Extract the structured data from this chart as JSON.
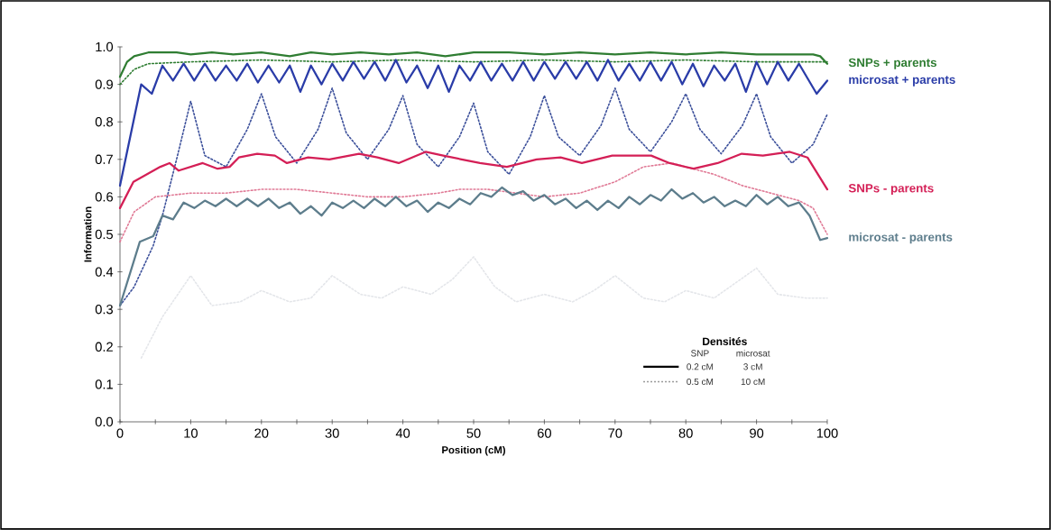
{
  "chart_data": {
    "type": "line",
    "xlabel": "Position (cM)",
    "ylabel": "Information",
    "legend_title": "Densités",
    "annotations": [
      "SNP",
      "microsat",
      "0.2 cM",
      "3 cM",
      "0.5 cM",
      "10 cM"
    ],
    "xlim": [
      0,
      100
    ],
    "ylim": [
      0,
      1.0
    ],
    "xticks": [
      0,
      {
        "value": 5,
        "label": null
      },
      10,
      {
        "value": 15,
        "label": null
      },
      20,
      {
        "value": 25,
        "label": null
      },
      30,
      {
        "value": 35,
        "label": null
      },
      40,
      {
        "value": 45,
        "label": null
      },
      50,
      {
        "value": 55,
        "label": null
      },
      60,
      {
        "value": 65,
        "label": null
      },
      70,
      {
        "value": 75,
        "label": null
      },
      80,
      {
        "value": 85,
        "label": null
      },
      90,
      {
        "value": 95,
        "label": null
      },
      100
    ],
    "yticks": [
      {
        "value": 0,
        "label": "0.0"
      },
      {
        "value": 0.1,
        "label": "0.1"
      },
      {
        "value": 0.2,
        "label": "0.2"
      },
      {
        "value": 0.3,
        "label": "0.3"
      },
      {
        "value": 0.4,
        "label": "0.4"
      },
      {
        "value": 0.5,
        "label": "0.5"
      },
      {
        "value": 0.6,
        "label": "0.6"
      },
      {
        "value": 0.7,
        "label": "0.7"
      },
      {
        "value": 0.8,
        "label": "0.8"
      },
      {
        "value": 0.9,
        "label": "0.9"
      },
      {
        "value": 1.0,
        "label": "1.0"
      }
    ],
    "marker": "none",
    "series": [
      {
        "color": "#e4e6ea",
        "line_style": "dotted",
        "x": [
          3,
          6,
          10,
          13,
          17,
          20,
          24,
          27,
          30,
          34,
          37,
          40,
          44,
          47,
          50,
          53,
          56,
          60,
          64,
          67,
          70,
          74,
          77,
          80,
          84,
          87,
          90,
          93,
          97,
          100
        ],
        "values": [
          0.17,
          0.28,
          0.39,
          0.31,
          0.32,
          0.35,
          0.32,
          0.33,
          0.39,
          0.34,
          0.33,
          0.36,
          0.34,
          0.38,
          0.44,
          0.36,
          0.32,
          0.34,
          0.32,
          0.35,
          0.39,
          0.33,
          0.32,
          0.35,
          0.33,
          0.37,
          0.41,
          0.34,
          0.33,
          0.33
        ]
      },
      {
        "color": "#2f7d32",
        "line_style": "dotted",
        "x": [
          0,
          2,
          4,
          10,
          20,
          30,
          40,
          50,
          60,
          70,
          80,
          90,
          96,
          100
        ],
        "values": [
          0.9,
          0.94,
          0.955,
          0.96,
          0.965,
          0.96,
          0.965,
          0.96,
          0.965,
          0.96,
          0.965,
          0.96,
          0.96,
          0.96
        ]
      },
      {
        "color": "#3b4f9a",
        "line_style": "dotted",
        "x": [
          0,
          2,
          4.7,
          6,
          8,
          10,
          12,
          15,
          18,
          20,
          22,
          25,
          28,
          30,
          32,
          35,
          38,
          40,
          42,
          45,
          48,
          50,
          52,
          55,
          58,
          60,
          62,
          65,
          68,
          70,
          72,
          75,
          78,
          80,
          82,
          85,
          88,
          90,
          92,
          95,
          98,
          100
        ],
        "values": [
          0.31,
          0.36,
          0.47,
          0.55,
          0.7,
          0.855,
          0.71,
          0.68,
          0.78,
          0.875,
          0.76,
          0.69,
          0.78,
          0.89,
          0.77,
          0.7,
          0.78,
          0.87,
          0.74,
          0.68,
          0.76,
          0.85,
          0.72,
          0.66,
          0.76,
          0.87,
          0.76,
          0.71,
          0.79,
          0.89,
          0.78,
          0.72,
          0.8,
          0.875,
          0.78,
          0.715,
          0.79,
          0.875,
          0.76,
          0.69,
          0.74,
          0.82
        ]
      },
      {
        "color": "#e07a96",
        "line_style": "dotted",
        "x": [
          0,
          2,
          5,
          10,
          15,
          20,
          25,
          30,
          35,
          40,
          45,
          48,
          52,
          56,
          60,
          65,
          70,
          74,
          78,
          80,
          84,
          88,
          92,
          96,
          98,
          100
        ],
        "values": [
          0.48,
          0.56,
          0.6,
          0.61,
          0.61,
          0.62,
          0.62,
          0.61,
          0.6,
          0.6,
          0.61,
          0.62,
          0.62,
          0.61,
          0.6,
          0.61,
          0.64,
          0.68,
          0.69,
          0.68,
          0.66,
          0.63,
          0.61,
          0.59,
          0.57,
          0.5
        ]
      },
      {
        "name": "SNPs + parents",
        "color": "#2f7d32",
        "line_style": "solid",
        "x": [
          0,
          1,
          2,
          4,
          8,
          10,
          13,
          16,
          20,
          24,
          27,
          30,
          34,
          38,
          42,
          46,
          50,
          55,
          60,
          65,
          70,
          75,
          80,
          85,
          90,
          95,
          98,
          99,
          100
        ],
        "values": [
          0.92,
          0.96,
          0.975,
          0.985,
          0.985,
          0.98,
          0.985,
          0.98,
          0.985,
          0.975,
          0.985,
          0.98,
          0.985,
          0.98,
          0.985,
          0.975,
          0.985,
          0.985,
          0.98,
          0.985,
          0.98,
          0.985,
          0.98,
          0.985,
          0.98,
          0.98,
          0.98,
          0.975,
          0.955
        ]
      },
      {
        "name": "microsat + parents",
        "color": "#2a3ca8",
        "line_style": "solid",
        "x": [
          0,
          3,
          4.5,
          6,
          7.5,
          9,
          10.5,
          12,
          13.5,
          15,
          16.5,
          18,
          19.5,
          21,
          22.5,
          24,
          25.5,
          27,
          28.5,
          30,
          31.5,
          33,
          34.5,
          36,
          37.5,
          39,
          40.5,
          42,
          43.5,
          45,
          46.5,
          48,
          49.5,
          51,
          52.5,
          54,
          55.5,
          57,
          58.5,
          60,
          61.5,
          63,
          64.5,
          66,
          67.5,
          69,
          70.5,
          72,
          73.5,
          75,
          76.5,
          78,
          79.5,
          81,
          82.5,
          84,
          85.5,
          87,
          88.5,
          90,
          91.5,
          93,
          94.5,
          96,
          98.5,
          100
        ],
        "values": [
          0.63,
          0.9,
          0.875,
          0.95,
          0.91,
          0.955,
          0.91,
          0.955,
          0.91,
          0.95,
          0.91,
          0.955,
          0.905,
          0.95,
          0.905,
          0.95,
          0.88,
          0.95,
          0.9,
          0.955,
          0.91,
          0.96,
          0.915,
          0.96,
          0.91,
          0.965,
          0.905,
          0.95,
          0.89,
          0.95,
          0.88,
          0.95,
          0.91,
          0.96,
          0.91,
          0.955,
          0.91,
          0.96,
          0.91,
          0.96,
          0.915,
          0.96,
          0.915,
          0.96,
          0.91,
          0.965,
          0.91,
          0.955,
          0.91,
          0.96,
          0.91,
          0.96,
          0.9,
          0.955,
          0.895,
          0.95,
          0.91,
          0.955,
          0.88,
          0.96,
          0.9,
          0.96,
          0.91,
          0.955,
          0.875,
          0.91
        ]
      },
      {
        "name": "SNPs - parents",
        "color": "#d41f56",
        "line_style": "solid",
        "x": [
          0,
          1.9,
          5.7,
          7,
          8.3,
          11.7,
          13.8,
          15.5,
          16.8,
          19.4,
          21.9,
          23.6,
          26.6,
          29.6,
          33.8,
          36.4,
          39.4,
          43.2,
          45.7,
          48.3,
          50.9,
          54.7,
          58.9,
          62.3,
          65.3,
          69.6,
          75.1,
          77.7,
          81.1,
          84.5,
          87.9,
          90.9,
          94.7,
          97.2,
          100
        ],
        "values": [
          0.57,
          0.64,
          0.68,
          0.69,
          0.67,
          0.69,
          0.675,
          0.68,
          0.705,
          0.715,
          0.71,
          0.69,
          0.705,
          0.7,
          0.715,
          0.705,
          0.69,
          0.72,
          0.71,
          0.7,
          0.69,
          0.68,
          0.7,
          0.705,
          0.69,
          0.71,
          0.71,
          0.69,
          0.675,
          0.69,
          0.715,
          0.71,
          0.72,
          0.705,
          0.62
        ]
      },
      {
        "name": "microsat - parents",
        "color": "#5d7d8c",
        "line_style": "solid",
        "x": [
          0,
          2.8,
          4.7,
          6,
          7.5,
          9,
          10.5,
          12,
          13.5,
          15,
          16.5,
          18,
          19.5,
          21,
          22.5,
          24,
          25.5,
          27,
          28.5,
          30,
          31.5,
          33,
          34.5,
          36,
          37.5,
          39,
          40.5,
          42,
          43.5,
          45,
          46.5,
          48,
          49.5,
          51,
          52.5,
          54,
          55.5,
          57,
          58.5,
          60,
          61.5,
          63,
          64.5,
          66,
          67.5,
          69,
          70.5,
          72,
          73.5,
          75,
          76.5,
          78,
          79.5,
          81,
          82.5,
          84,
          85.5,
          87,
          88.5,
          90,
          91.5,
          93,
          94.5,
          96,
          97.5,
          99,
          100
        ],
        "values": [
          0.31,
          0.48,
          0.495,
          0.55,
          0.54,
          0.585,
          0.57,
          0.59,
          0.575,
          0.595,
          0.575,
          0.595,
          0.575,
          0.595,
          0.57,
          0.585,
          0.555,
          0.575,
          0.55,
          0.585,
          0.57,
          0.59,
          0.57,
          0.595,
          0.575,
          0.6,
          0.575,
          0.59,
          0.56,
          0.585,
          0.57,
          0.595,
          0.58,
          0.61,
          0.6,
          0.625,
          0.605,
          0.615,
          0.59,
          0.605,
          0.58,
          0.595,
          0.57,
          0.59,
          0.565,
          0.59,
          0.57,
          0.6,
          0.58,
          0.605,
          0.59,
          0.62,
          0.595,
          0.61,
          0.585,
          0.6,
          0.575,
          0.59,
          0.575,
          0.605,
          0.58,
          0.6,
          0.575,
          0.585,
          0.55,
          0.485,
          0.49
        ]
      }
    ]
  }
}
